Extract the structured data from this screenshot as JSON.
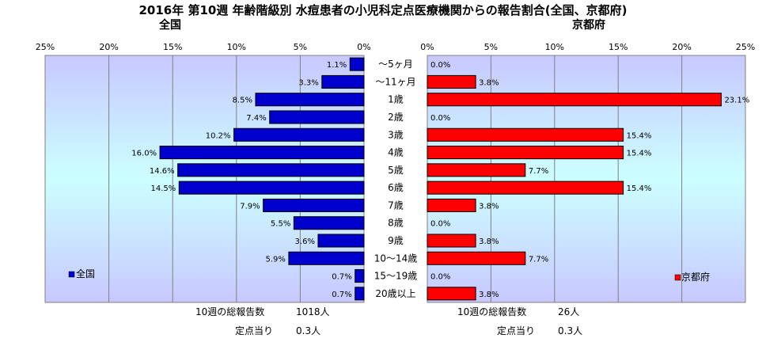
{
  "title": "2016年 第10週 年齢階級別 水痘患者の小児科定点医療機関からの報告割合(全国、京都府)",
  "chart_data": {
    "type": "bar",
    "orientation": "horizontal-butterfly",
    "title": "2016年 第10週 年齢階級別 水痘患者の小児科定点医療機関からの報告割合(全国、京都府)",
    "categories": [
      "～5ヶ月",
      "～11ヶ月",
      "1歳",
      "2歳",
      "3歳",
      "4歳",
      "5歳",
      "6歳",
      "7歳",
      "8歳",
      "9歳",
      "10～14歳",
      "15～19歳",
      "20歳以上"
    ],
    "xlim": [
      0,
      25
    ],
    "tick_values": [
      25,
      20,
      15,
      10,
      5,
      0
    ],
    "tick_labels": [
      "25%",
      "20%",
      "15%",
      "10%",
      "5%",
      "0%"
    ],
    "right_tick_labels": [
      "0%",
      "5%",
      "10%",
      "15%",
      "20%",
      "25%"
    ],
    "grid": true,
    "series": [
      {
        "name": "全国",
        "panel_title": "全国",
        "legend_label": "全国",
        "legend_position": "bottom-left",
        "color": "#0000cc",
        "values": [
          1.1,
          3.3,
          8.5,
          7.4,
          10.2,
          16.0,
          14.6,
          14.5,
          7.9,
          5.5,
          3.6,
          5.9,
          0.7,
          0.7
        ],
        "labels": [
          "1.1%",
          "3.3%",
          "8.5%",
          "7.4%",
          "10.2%",
          "16.0%",
          "14.6%",
          "14.5%",
          "7.9%",
          "5.5%",
          "3.6%",
          "5.9%",
          "0.7%",
          "0.7%"
        ],
        "footer": {
          "total_label": "10週の総報告数",
          "total_value": "1018人",
          "per_label": "定点当り",
          "per_value": "0.3人"
        }
      },
      {
        "name": "京都府",
        "panel_title": "京都府",
        "legend_label": "京都府",
        "legend_position": "bottom-right",
        "color": "#ff0000",
        "values": [
          0.0,
          3.8,
          23.1,
          0.0,
          15.4,
          15.4,
          7.7,
          15.4,
          3.8,
          0.0,
          3.8,
          7.7,
          0.0,
          3.8
        ],
        "labels": [
          "0.0%",
          "3.8%",
          "23.1%",
          "0.0%",
          "15.4%",
          "15.4%",
          "7.7%",
          "15.4%",
          "3.8%",
          "0.0%",
          "3.8%",
          "7.7%",
          "0.0%",
          "3.8%"
        ],
        "footer": {
          "total_label": "10週の総報告数",
          "total_value": "26人",
          "per_label": "定点当り",
          "per_value": "0.3人"
        }
      }
    ],
    "colors": {
      "plot_top": "#c8c8ff",
      "plot_mid": "#ccffff",
      "plot_bottom": "#c8c8ff",
      "plot_border": "#808080",
      "grid": "#808080"
    }
  }
}
